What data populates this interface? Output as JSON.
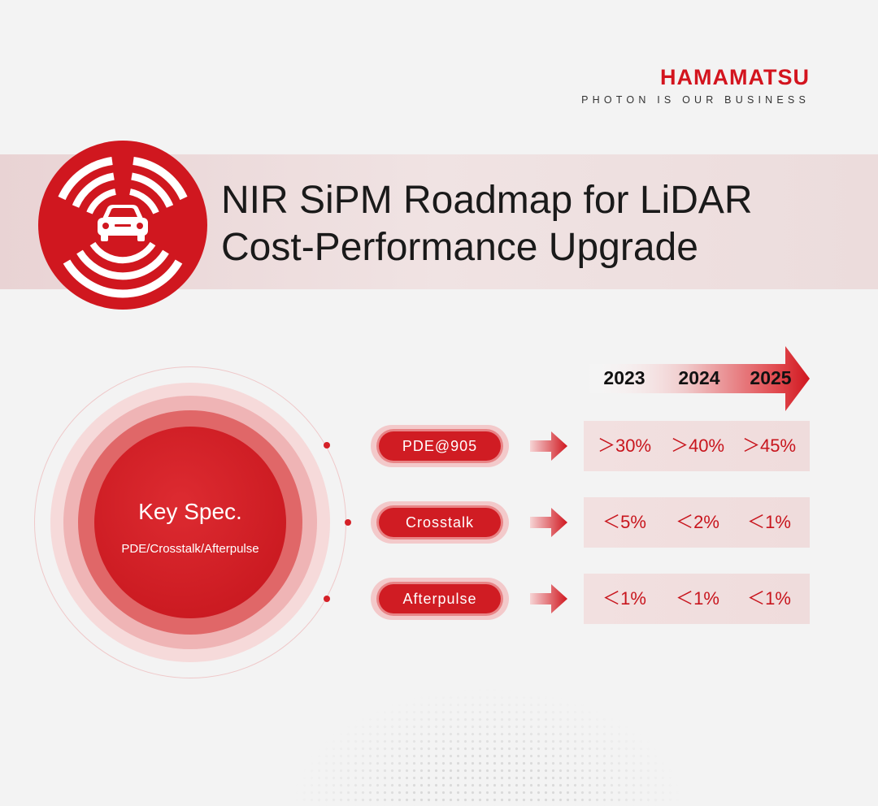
{
  "brand": {
    "name": "HAMAMATSU",
    "tagline": "PHOTON IS OUR BUSINESS"
  },
  "title": {
    "line1": "NIR SiPM Roadmap for LiDAR",
    "line2": "Cost-Performance Upgrade"
  },
  "key_spec": {
    "title": "Key Spec.",
    "subtitle": "PDE/Crosstalk/Afterpulse"
  },
  "years": [
    "2023",
    "2024",
    "2025"
  ],
  "specs": [
    {
      "label": "PDE@905",
      "values": [
        "＞30%",
        "＞40%",
        "＞45%"
      ]
    },
    {
      "label": "Crosstalk",
      "values": [
        "＜5%",
        "＜2%",
        "＜1%"
      ]
    },
    {
      "label": "Afterpulse",
      "values": [
        "＜1%",
        "＜1%",
        "＜1%"
      ]
    }
  ],
  "colors": {
    "accent": "#d01c23",
    "band": "#efdcdc",
    "background": "#f3f3f3"
  },
  "icons": {
    "title_icon": "car-radar-icon",
    "row_arrow": "arrow-right-icon"
  }
}
